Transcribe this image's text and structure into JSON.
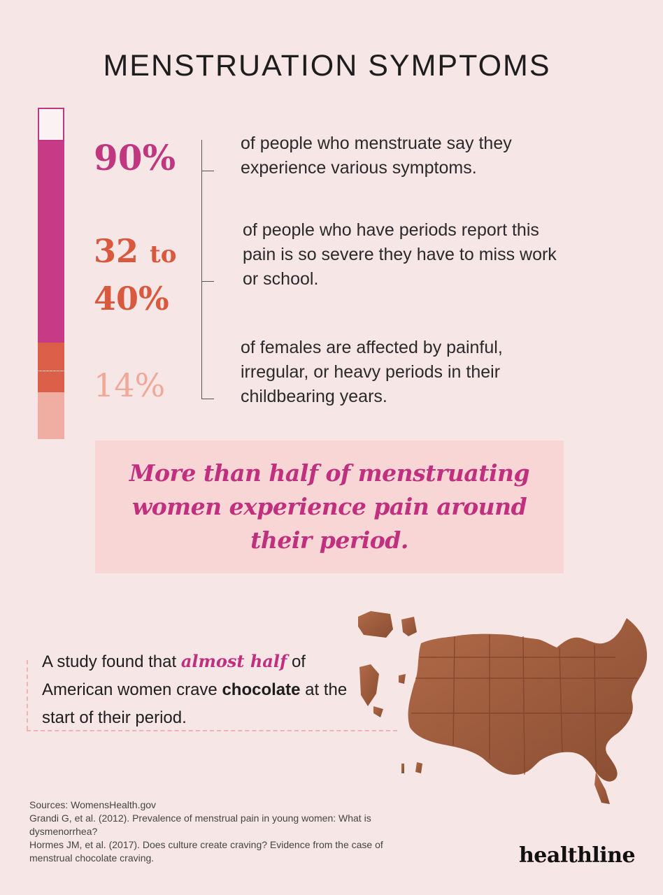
{
  "title": "MENSTRUATION SYMPTOMS",
  "stats": {
    "s1": {
      "value": "90%",
      "text": "of people who menstruate say they experience various symptoms."
    },
    "s2": {
      "value_a": "32",
      "value_to": "to",
      "value_b": "40%",
      "text": "of people who have periods report this pain is so severe they have to miss work or school."
    },
    "s3": {
      "value": "14%",
      "text": "of females are affected by painful, irregular, or heavy periods in their childbearing years."
    }
  },
  "callout": "More than half of menstruating women experience pain around their period.",
  "study": {
    "part1": "A study found that ",
    "emphasis": "almost half",
    "part2": " of American women crave ",
    "strong": "chocolate",
    "part3": " at the start of their period."
  },
  "sources": [
    "Sources: WomensHealth.gov",
    "Grandi G, et al. (2012). Prevalence of menstrual pain in young women: What is dysmenorrhea?",
    "Hormes JM, et al. (2017). Does culture create craving? Evidence from the case of menstrual chocolate craving."
  ],
  "brand": "healthline",
  "colors": {
    "magenta": "#c0367f",
    "orange": "#dc5f4a",
    "light_salmon": "#f0aea2",
    "chocolate": "#9a5a3c"
  },
  "icons": {
    "map": "usa-chocolate-map-image"
  }
}
